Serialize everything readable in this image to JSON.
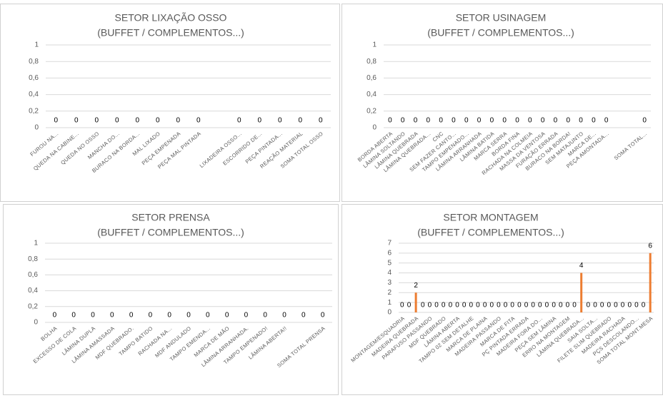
{
  "chart_data": [
    {
      "type": "bar",
      "title": [
        "SETOR  LIXAÇÃO OSSO",
        "(BUFFET / COMPLEMENTOS...)"
      ],
      "ylim": [
        0,
        1
      ],
      "yticks": [
        "0",
        "0,2",
        "0,4",
        "0,6",
        "0,8",
        "1"
      ],
      "grid": true,
      "bar_color": "#ed7d31",
      "categories": [
        "FUROU NA...",
        "QUEDA NA CABINE...",
        "QUEDA NO OSSO",
        "MANCHA DO...",
        "BURACO NA BORDA...",
        "MAL LIXADO",
        "PEÇA EMPENADA",
        "PEÇA MAL PINTADA",
        "",
        "LIXADEIRA OSSO...",
        "ESCORRIDO DE...",
        "PEÇA PINTADA...",
        "REAÇÃO MATERIAL",
        "SOMA TOTAL OSSO"
      ],
      "values": [
        0,
        0,
        0,
        0,
        0,
        0,
        0,
        0,
        0,
        0,
        0,
        0,
        0,
        0
      ],
      "data_labels": [
        "0",
        "0",
        "0",
        "0",
        "0",
        "0",
        "0",
        "0",
        "",
        "0",
        "0",
        "0",
        "0",
        "0"
      ]
    },
    {
      "type": "bar",
      "title": [
        "SETOR USINAGEM",
        "(BUFFET / COMPLEMENTOS...)"
      ],
      "ylim": [
        0,
        1
      ],
      "yticks": [
        "0",
        "0,2",
        "0,4",
        "0,6",
        "0,8",
        "1"
      ],
      "grid": true,
      "bar_color": "#ed7d31",
      "categories": [
        "BORDA ABERTA",
        "LÂMINA SOLTANDO",
        "LÂMINA QUEBRADA",
        "LÂMINA QUEBRADA...",
        "CNC",
        "SEM FAZER CANTO...",
        "TAMPO EMPENADO...",
        "LÂMINA ARRANHADA",
        "LÂMINA BATIDA",
        "MARCA SERRA",
        "BORDA FINA",
        "RACHADA NA COLMEIA",
        "MASSA DA VENTOSA",
        "FURAÇÃO ERRADA",
        "BURACO NA BORDA!",
        "SEM MATAJUNTO",
        "MARCA DE...",
        "PEÇA AMONTADA...",
        "",
        "",
        "SOMA TOTAL..."
      ],
      "values": [
        0,
        0,
        0,
        0,
        0,
        0,
        0,
        0,
        0,
        0,
        0,
        0,
        0,
        0,
        0,
        0,
        0,
        0,
        0,
        0,
        0
      ],
      "data_labels": [
        "0",
        "0",
        "0",
        "0",
        "0",
        "0",
        "0",
        "0",
        "0",
        "0",
        "0",
        "0",
        "0",
        "0",
        "0",
        "0",
        "0",
        "0",
        "",
        "",
        "0"
      ]
    },
    {
      "type": "bar",
      "title": [
        "SETOR PRENSA",
        "(BUFFET / COMPLEMENTOS...)"
      ],
      "ylim": [
        0,
        1
      ],
      "yticks": [
        "0",
        "0,2",
        "0,4",
        "0,6",
        "0,8",
        "1"
      ],
      "grid": true,
      "bar_color": "#ed7d31",
      "categories": [
        "BOLHA",
        "EXCESSO DE COLA",
        "LÂMINA DUPLA",
        "LÂMINA AMASSADA",
        "MDF QUEBRADO.",
        "TAMPO BATIDO",
        "RACHADA NA...",
        "MDF ANDULADO",
        "TAMPO EMENDA...",
        "MARCA DE MÃO",
        "LÂMINA ARRANHADA.",
        "TAMPO EMPENADO!",
        "LÂMINA ABERTA!!",
        "",
        "SOMA TOTAL PRENSA"
      ],
      "values": [
        0,
        0,
        0,
        0,
        0,
        0,
        0,
        0,
        0,
        0,
        0,
        0,
        0,
        0,
        0
      ],
      "data_labels": [
        "0",
        "0",
        "0",
        "0",
        "0",
        "0",
        "0",
        "0",
        "0",
        "0",
        "0",
        "0",
        "0",
        "0",
        "0"
      ]
    },
    {
      "type": "bar",
      "title": [
        "SETOR MONTAGEM",
        "(BUFFET / COMPLEMENTOS...)"
      ],
      "ylim": [
        0,
        7
      ],
      "yticks": [
        "0",
        "1",
        "2",
        "3",
        "4",
        "5",
        "6",
        "7"
      ],
      "grid": true,
      "bar_color": "#ed7d31",
      "categories": [
        "MONTAGEM/ESQUADRIA",
        "",
        "MADEIRA QUEBRADA",
        "",
        "PARAFUSO PASSANDO",
        "",
        "MDF QUEBRADO",
        "",
        "LÂMINA ABERTA",
        "",
        "TAMPO 02 SEM DETALHE",
        "",
        "MARCA DE PLAINA",
        "",
        "MADEIRA PASSANDO",
        "",
        "MARCA DE FITA",
        "",
        "PÇ PINTADA ERRADA",
        "",
        "MADEIRA FORA DO...",
        "",
        "PEÇA SEM LÂMINA",
        "",
        "ERRO NA MONTAGEM",
        "",
        "LÂMINA QUEBRADA...",
        "",
        "SAIA SOLTA...",
        "",
        "FILETE SLIM QUEBRADO",
        "",
        "MADEIRA RACHADA",
        "",
        "PÇS DESCOLANDO...",
        "",
        "SOMA TOTAL MONT.MESA"
      ],
      "values": [
        0,
        0,
        2,
        0,
        0,
        0,
        0,
        0,
        0,
        0,
        0,
        0,
        0,
        0,
        0,
        0,
        0,
        0,
        0,
        0,
        0,
        0,
        0,
        0,
        0,
        0,
        4,
        0,
        0,
        0,
        0,
        0,
        0,
        0,
        0,
        0,
        6
      ],
      "data_labels": [
        "0",
        "0",
        "2",
        "0",
        "0",
        "0",
        "0",
        "0",
        "0",
        "0",
        "0",
        "0",
        "0",
        "0",
        "0",
        "0",
        "0",
        "0",
        "0",
        "0",
        "0",
        "0",
        "0",
        "0",
        "0",
        "0",
        "4",
        "0",
        "0",
        "0",
        "0",
        "0",
        "0",
        "0",
        "0",
        "0",
        "6"
      ]
    }
  ]
}
